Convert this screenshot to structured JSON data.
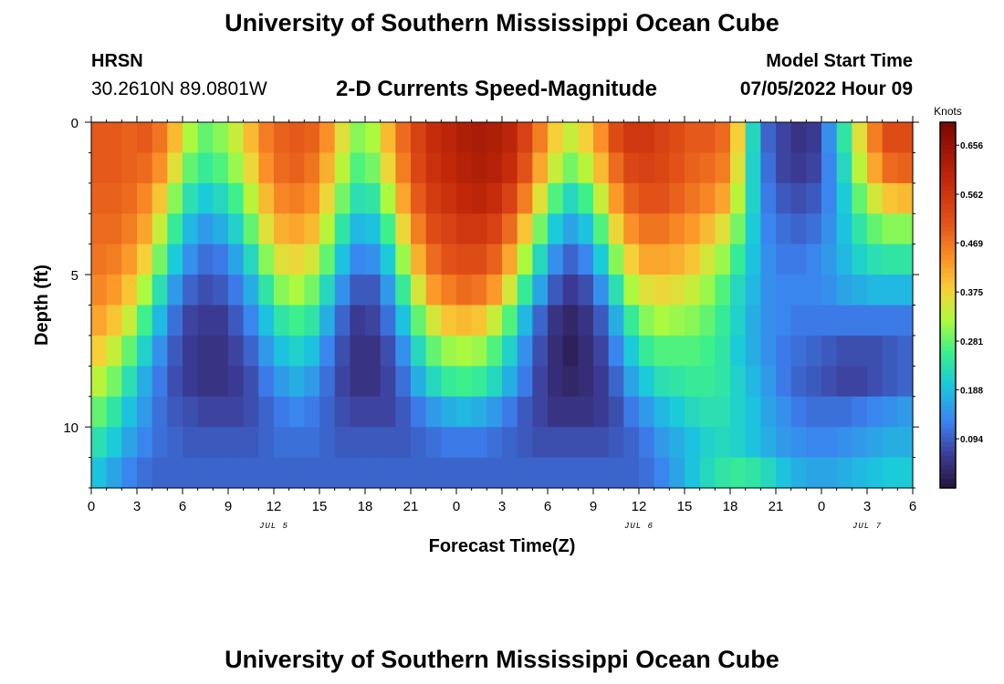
{
  "header": {
    "title": "University of Southern Mississippi Ocean Cube",
    "station": "HRSN",
    "coords": "30.2610N  89.0801W",
    "subtitle": "2-D Currents Speed-Magnitude",
    "model_label": "Model Start Time",
    "model_time": "07/05/2022 Hour 09"
  },
  "footer": {
    "title": "University of Southern Mississippi Ocean Cube"
  },
  "chart_data": {
    "type": "heatmap",
    "title": "2-D Currents Speed-Magnitude",
    "xlabel": "Forecast Time(Z)",
    "ylabel": "Depth (ft)",
    "x_ticks": [
      "0",
      "3",
      "6",
      "9",
      "12",
      "15",
      "18",
      "21",
      "0",
      "3",
      "6",
      "9",
      "12",
      "15",
      "18",
      "21",
      "0",
      "3",
      "6"
    ],
    "date_labels": [
      {
        "label": "JUL 5",
        "hour": 12
      },
      {
        "label": "JUL 6",
        "hour": 36
      },
      {
        "label": "JUL 7",
        "hour": 51
      }
    ],
    "x_range_hours": [
      0,
      54
    ],
    "y_ticks": [
      "0",
      "5",
      "10"
    ],
    "y_range": [
      0,
      12
    ],
    "colorbar": {
      "title": "Knots",
      "ticks": [
        "0.656",
        "0.562",
        "0.469",
        "0.375",
        "0.281",
        "0.188",
        "0.094"
      ],
      "range": [
        0,
        0.7
      ]
    },
    "depths_ft": [
      0.5,
      1.5,
      2.5,
      3.5,
      4.5,
      5.5,
      6.5,
      7.5,
      8.5,
      9.5,
      10.5,
      11.5
    ],
    "hour_step": 1,
    "speed_knots": [
      [
        0.5,
        0.5,
        0.49,
        0.5,
        0.47,
        0.4,
        0.32,
        0.28,
        0.3,
        0.34,
        0.4,
        0.46,
        0.49,
        0.5,
        0.49,
        0.44,
        0.36,
        0.3,
        0.32,
        0.4,
        0.48,
        0.54,
        0.58,
        0.6,
        0.62,
        0.63,
        0.62,
        0.6,
        0.54,
        0.46,
        0.38,
        0.34,
        0.38,
        0.44,
        0.52,
        0.56,
        0.56,
        0.54,
        0.52,
        0.5,
        0.5,
        0.48,
        0.38,
        0.22,
        0.1,
        0.07,
        0.05,
        0.06,
        0.14,
        0.24,
        0.36,
        0.46,
        0.52,
        0.52,
        0.48
      ],
      [
        0.5,
        0.5,
        0.49,
        0.48,
        0.44,
        0.36,
        0.28,
        0.25,
        0.27,
        0.31,
        0.37,
        0.44,
        0.48,
        0.49,
        0.47,
        0.41,
        0.33,
        0.27,
        0.29,
        0.37,
        0.46,
        0.53,
        0.57,
        0.59,
        0.61,
        0.62,
        0.61,
        0.58,
        0.51,
        0.42,
        0.34,
        0.29,
        0.33,
        0.4,
        0.48,
        0.53,
        0.54,
        0.53,
        0.51,
        0.49,
        0.48,
        0.46,
        0.36,
        0.21,
        0.11,
        0.07,
        0.06,
        0.07,
        0.13,
        0.22,
        0.33,
        0.42,
        0.48,
        0.49,
        0.46
      ],
      [
        0.49,
        0.49,
        0.48,
        0.45,
        0.39,
        0.3,
        0.23,
        0.2,
        0.22,
        0.26,
        0.33,
        0.4,
        0.45,
        0.46,
        0.44,
        0.37,
        0.29,
        0.23,
        0.24,
        0.32,
        0.42,
        0.5,
        0.55,
        0.57,
        0.59,
        0.6,
        0.58,
        0.54,
        0.46,
        0.36,
        0.27,
        0.22,
        0.26,
        0.34,
        0.43,
        0.49,
        0.51,
        0.51,
        0.49,
        0.47,
        0.45,
        0.42,
        0.33,
        0.21,
        0.12,
        0.09,
        0.08,
        0.09,
        0.13,
        0.2,
        0.28,
        0.35,
        0.39,
        0.4,
        0.38
      ],
      [
        0.48,
        0.48,
        0.46,
        0.42,
        0.34,
        0.25,
        0.18,
        0.15,
        0.17,
        0.21,
        0.28,
        0.36,
        0.41,
        0.42,
        0.4,
        0.33,
        0.24,
        0.18,
        0.19,
        0.26,
        0.37,
        0.46,
        0.52,
        0.54,
        0.56,
        0.56,
        0.54,
        0.48,
        0.39,
        0.29,
        0.2,
        0.16,
        0.19,
        0.27,
        0.37,
        0.44,
        0.47,
        0.47,
        0.45,
        0.43,
        0.4,
        0.36,
        0.29,
        0.2,
        0.13,
        0.11,
        0.1,
        0.11,
        0.14,
        0.19,
        0.24,
        0.28,
        0.3,
        0.3,
        0.29
      ],
      [
        0.47,
        0.46,
        0.43,
        0.38,
        0.29,
        0.2,
        0.14,
        0.11,
        0.12,
        0.16,
        0.22,
        0.3,
        0.36,
        0.37,
        0.35,
        0.28,
        0.19,
        0.13,
        0.14,
        0.2,
        0.31,
        0.41,
        0.48,
        0.51,
        0.52,
        0.52,
        0.49,
        0.42,
        0.32,
        0.22,
        0.14,
        0.1,
        0.13,
        0.2,
        0.3,
        0.38,
        0.42,
        0.42,
        0.41,
        0.39,
        0.35,
        0.31,
        0.25,
        0.19,
        0.14,
        0.12,
        0.12,
        0.13,
        0.15,
        0.18,
        0.21,
        0.23,
        0.24,
        0.24,
        0.23
      ],
      [
        0.45,
        0.43,
        0.39,
        0.32,
        0.23,
        0.15,
        0.1,
        0.08,
        0.09,
        0.12,
        0.17,
        0.24,
        0.3,
        0.32,
        0.29,
        0.22,
        0.14,
        0.09,
        0.09,
        0.15,
        0.25,
        0.35,
        0.43,
        0.46,
        0.48,
        0.47,
        0.43,
        0.35,
        0.25,
        0.16,
        0.09,
        0.06,
        0.08,
        0.14,
        0.23,
        0.32,
        0.36,
        0.37,
        0.36,
        0.34,
        0.31,
        0.27,
        0.22,
        0.18,
        0.14,
        0.13,
        0.13,
        0.13,
        0.14,
        0.16,
        0.17,
        0.18,
        0.18,
        0.18,
        0.17
      ],
      [
        0.42,
        0.39,
        0.34,
        0.26,
        0.18,
        0.11,
        0.07,
        0.06,
        0.06,
        0.09,
        0.13,
        0.19,
        0.24,
        0.26,
        0.24,
        0.17,
        0.1,
        0.06,
        0.07,
        0.11,
        0.19,
        0.28,
        0.35,
        0.39,
        0.4,
        0.39,
        0.34,
        0.27,
        0.18,
        0.1,
        0.05,
        0.03,
        0.05,
        0.09,
        0.17,
        0.25,
        0.3,
        0.32,
        0.31,
        0.3,
        0.28,
        0.25,
        0.21,
        0.17,
        0.14,
        0.13,
        0.12,
        0.12,
        0.12,
        0.12,
        0.12,
        0.12,
        0.12,
        0.12,
        0.12
      ],
      [
        0.38,
        0.34,
        0.28,
        0.21,
        0.14,
        0.09,
        0.06,
        0.05,
        0.05,
        0.07,
        0.1,
        0.15,
        0.19,
        0.21,
        0.19,
        0.13,
        0.08,
        0.05,
        0.05,
        0.08,
        0.14,
        0.22,
        0.28,
        0.31,
        0.32,
        0.31,
        0.27,
        0.21,
        0.14,
        0.08,
        0.04,
        0.02,
        0.04,
        0.07,
        0.13,
        0.2,
        0.25,
        0.27,
        0.27,
        0.27,
        0.26,
        0.24,
        0.2,
        0.17,
        0.14,
        0.12,
        0.11,
        0.1,
        0.09,
        0.08,
        0.08,
        0.08,
        0.09,
        0.1,
        0.11
      ],
      [
        0.33,
        0.29,
        0.23,
        0.17,
        0.12,
        0.08,
        0.06,
        0.05,
        0.05,
        0.06,
        0.08,
        0.12,
        0.15,
        0.17,
        0.15,
        0.11,
        0.07,
        0.05,
        0.05,
        0.07,
        0.11,
        0.17,
        0.22,
        0.25,
        0.26,
        0.25,
        0.22,
        0.17,
        0.12,
        0.07,
        0.04,
        0.03,
        0.04,
        0.06,
        0.1,
        0.16,
        0.2,
        0.23,
        0.24,
        0.25,
        0.25,
        0.24,
        0.21,
        0.18,
        0.15,
        0.12,
        0.1,
        0.09,
        0.08,
        0.07,
        0.07,
        0.08,
        0.09,
        0.1,
        0.11
      ],
      [
        0.28,
        0.24,
        0.19,
        0.15,
        0.11,
        0.09,
        0.08,
        0.07,
        0.07,
        0.07,
        0.08,
        0.1,
        0.12,
        0.13,
        0.12,
        0.1,
        0.08,
        0.07,
        0.07,
        0.07,
        0.09,
        0.12,
        0.15,
        0.17,
        0.18,
        0.17,
        0.15,
        0.12,
        0.09,
        0.07,
        0.05,
        0.05,
        0.05,
        0.06,
        0.08,
        0.12,
        0.15,
        0.18,
        0.2,
        0.22,
        0.23,
        0.23,
        0.21,
        0.19,
        0.16,
        0.14,
        0.12,
        0.11,
        0.11,
        0.11,
        0.12,
        0.13,
        0.14,
        0.15,
        0.15
      ],
      [
        0.23,
        0.2,
        0.16,
        0.13,
        0.11,
        0.1,
        0.09,
        0.09,
        0.09,
        0.09,
        0.09,
        0.1,
        0.11,
        0.11,
        0.11,
        0.1,
        0.09,
        0.09,
        0.09,
        0.09,
        0.09,
        0.1,
        0.11,
        0.12,
        0.12,
        0.12,
        0.11,
        0.1,
        0.09,
        0.08,
        0.08,
        0.08,
        0.08,
        0.08,
        0.09,
        0.1,
        0.12,
        0.15,
        0.17,
        0.19,
        0.21,
        0.22,
        0.21,
        0.19,
        0.17,
        0.15,
        0.14,
        0.13,
        0.13,
        0.14,
        0.15,
        0.16,
        0.17,
        0.17,
        0.17
      ],
      [
        0.19,
        0.16,
        0.13,
        0.11,
        0.1,
        0.1,
        0.1,
        0.1,
        0.1,
        0.1,
        0.1,
        0.1,
        0.1,
        0.1,
        0.1,
        0.1,
        0.1,
        0.1,
        0.1,
        0.1,
        0.1,
        0.1,
        0.1,
        0.1,
        0.1,
        0.1,
        0.1,
        0.1,
        0.1,
        0.1,
        0.1,
        0.1,
        0.1,
        0.1,
        0.1,
        0.1,
        0.11,
        0.13,
        0.16,
        0.19,
        0.22,
        0.24,
        0.25,
        0.24,
        0.22,
        0.19,
        0.17,
        0.16,
        0.16,
        0.17,
        0.18,
        0.19,
        0.2,
        0.2,
        0.2
      ]
    ]
  }
}
